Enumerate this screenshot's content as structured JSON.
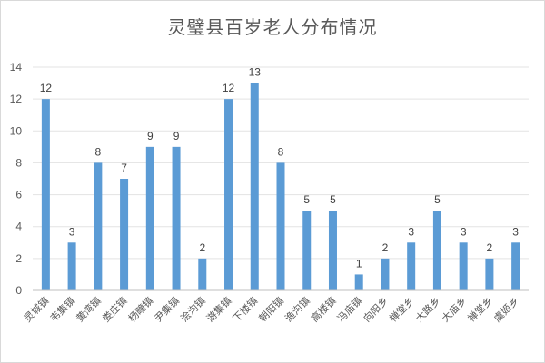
{
  "chart_data": {
    "type": "bar",
    "title": "灵璧县百岁老人分布情况",
    "xlabel": "",
    "ylabel": "",
    "ylim": [
      0,
      14
    ],
    "yticks": [
      0,
      2,
      4,
      6,
      8,
      10,
      12,
      14
    ],
    "grid": true,
    "legend": "none",
    "bar_color": "#5b9bd5",
    "categories": [
      "灵城镇",
      "韦集镇",
      "黄湾镇",
      "娄庄镇",
      "杨疃镇",
      "尹集镇",
      "浍沟镇",
      "游集镇",
      "下楼镇",
      "朝阳镇",
      "渔沟镇",
      "高楼镇",
      "冯庙镇",
      "向阳乡",
      "禅堂乡",
      "大路乡",
      "大庙乡",
      "禅堂乡",
      "虞姬乡"
    ],
    "values": [
      12,
      3,
      8,
      7,
      9,
      9,
      2,
      12,
      13,
      8,
      5,
      5,
      1,
      2,
      3,
      5,
      3,
      2,
      3
    ]
  }
}
